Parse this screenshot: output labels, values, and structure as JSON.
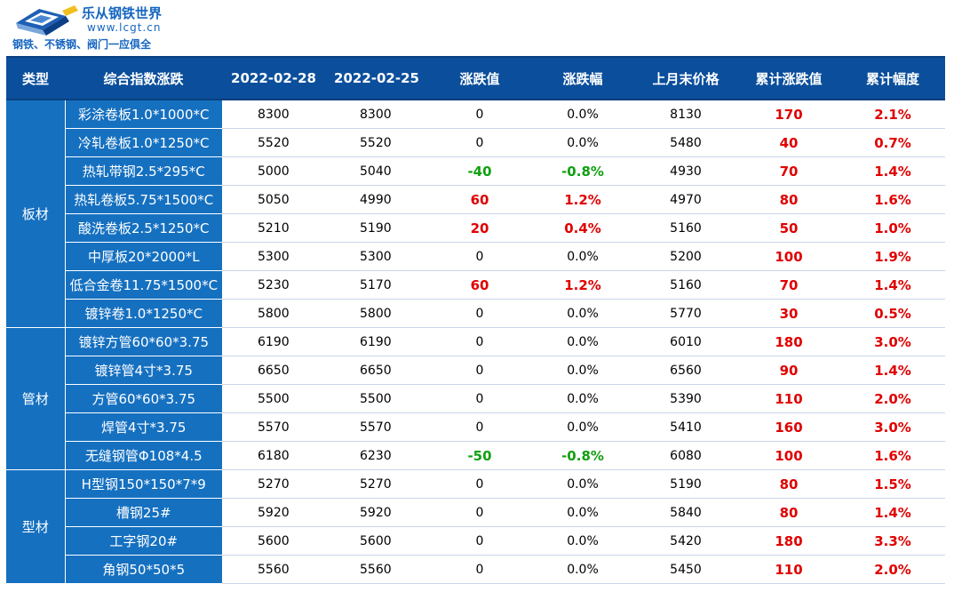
{
  "brand": {
    "name": "乐从钢铁世界",
    "url": "www.lcgt.cn",
    "slogan": "钢铁、不锈钢、阀门一应俱全"
  },
  "colors": {
    "header_bg": "#0b4f9c",
    "cell_blue": "#1570c0",
    "up": "#e00000",
    "down": "#10a010"
  },
  "headers": [
    "类型",
    "综合指数涨跌",
    "2022-02-28",
    "2022-02-25",
    "涨跌值",
    "涨跌幅",
    "上月末价格",
    "累计涨跌值",
    "累计幅度"
  ],
  "groups": [
    {
      "type": "板材",
      "rows": [
        {
          "name": "彩涂卷板1.0*1000*C",
          "d1": "8300",
          "d2": "8300",
          "chg": "0",
          "pct": "0.0%",
          "last": "8130",
          "cum": "170",
          "cum_pct": "2.1%"
        },
        {
          "name": "冷轧卷板1.0*1250*C",
          "d1": "5520",
          "d2": "5520",
          "chg": "0",
          "pct": "0.0%",
          "last": "5480",
          "cum": "40",
          "cum_pct": "0.7%"
        },
        {
          "name": "热轧带钢2.5*295*C",
          "d1": "5000",
          "d2": "5040",
          "chg": "-40",
          "pct": "-0.8%",
          "last": "4930",
          "cum": "70",
          "cum_pct": "1.4%"
        },
        {
          "name": "热轧卷板5.75*1500*C",
          "d1": "5050",
          "d2": "4990",
          "chg": "60",
          "pct": "1.2%",
          "last": "4970",
          "cum": "80",
          "cum_pct": "1.6%"
        },
        {
          "name": "酸洗卷板2.5*1250*C",
          "d1": "5210",
          "d2": "5190",
          "chg": "20",
          "pct": "0.4%",
          "last": "5160",
          "cum": "50",
          "cum_pct": "1.0%"
        },
        {
          "name": "中厚板20*2000*L",
          "d1": "5300",
          "d2": "5300",
          "chg": "0",
          "pct": "0.0%",
          "last": "5200",
          "cum": "100",
          "cum_pct": "1.9%"
        },
        {
          "name": "低合金卷11.75*1500*C",
          "d1": "5230",
          "d2": "5170",
          "chg": "60",
          "pct": "1.2%",
          "last": "5160",
          "cum": "70",
          "cum_pct": "1.4%"
        },
        {
          "name": "镀锌卷1.0*1250*C",
          "d1": "5800",
          "d2": "5800",
          "chg": "0",
          "pct": "0.0%",
          "last": "5770",
          "cum": "30",
          "cum_pct": "0.5%"
        }
      ]
    },
    {
      "type": "管材",
      "rows": [
        {
          "name": "镀锌方管60*60*3.75",
          "d1": "6190",
          "d2": "6190",
          "chg": "0",
          "pct": "0.0%",
          "last": "6010",
          "cum": "180",
          "cum_pct": "3.0%"
        },
        {
          "name": "镀锌管4寸*3.75",
          "d1": "6650",
          "d2": "6650",
          "chg": "0",
          "pct": "0.0%",
          "last": "6560",
          "cum": "90",
          "cum_pct": "1.4%"
        },
        {
          "name": "方管60*60*3.75",
          "d1": "5500",
          "d2": "5500",
          "chg": "0",
          "pct": "0.0%",
          "last": "5390",
          "cum": "110",
          "cum_pct": "2.0%"
        },
        {
          "name": "焊管4寸*3.75",
          "d1": "5570",
          "d2": "5570",
          "chg": "0",
          "pct": "0.0%",
          "last": "5410",
          "cum": "160",
          "cum_pct": "3.0%"
        },
        {
          "name": "无缝钢管Φ108*4.5",
          "d1": "6180",
          "d2": "6230",
          "chg": "-50",
          "pct": "-0.8%",
          "last": "6080",
          "cum": "100",
          "cum_pct": "1.6%"
        }
      ]
    },
    {
      "type": "型材",
      "rows": [
        {
          "name": "H型钢150*150*7*9",
          "d1": "5270",
          "d2": "5270",
          "chg": "0",
          "pct": "0.0%",
          "last": "5190",
          "cum": "80",
          "cum_pct": "1.5%"
        },
        {
          "name": "槽钢25#",
          "d1": "5920",
          "d2": "5920",
          "chg": "0",
          "pct": "0.0%",
          "last": "5840",
          "cum": "80",
          "cum_pct": "1.4%"
        },
        {
          "name": "工字钢20#",
          "d1": "5600",
          "d2": "5600",
          "chg": "0",
          "pct": "0.0%",
          "last": "5420",
          "cum": "180",
          "cum_pct": "3.3%"
        },
        {
          "name": "角钢50*50*5",
          "d1": "5560",
          "d2": "5560",
          "chg": "0",
          "pct": "0.0%",
          "last": "5450",
          "cum": "110",
          "cum_pct": "2.0%"
        }
      ]
    }
  ]
}
